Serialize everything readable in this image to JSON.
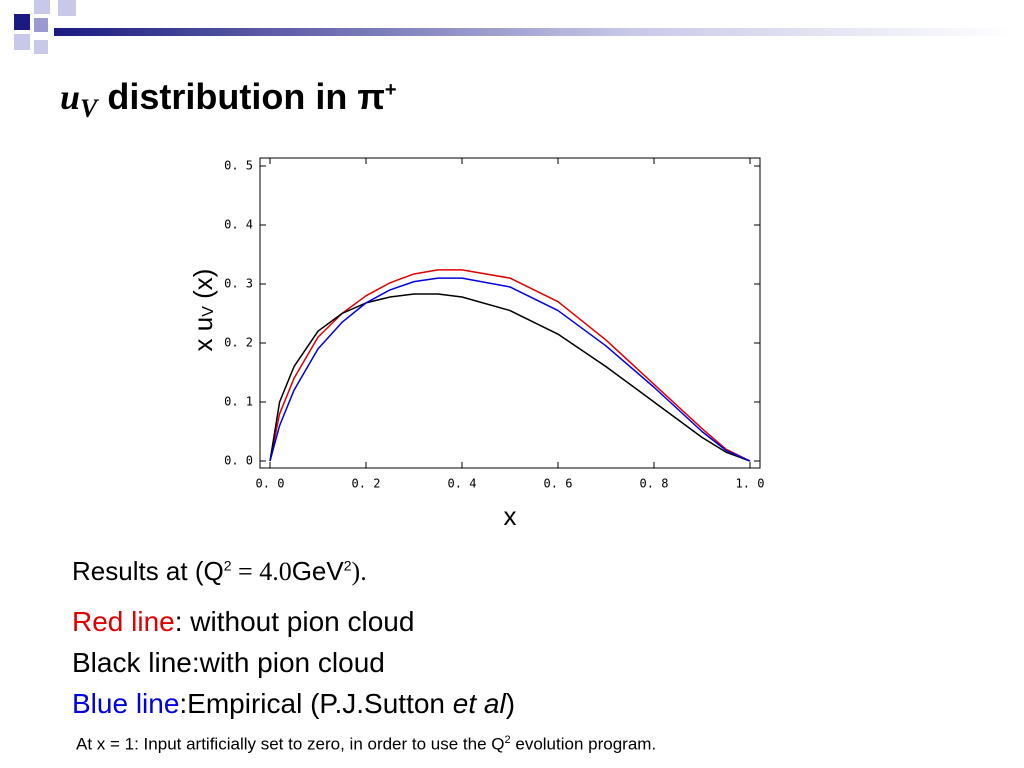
{
  "title": {
    "var": "u",
    "sub": "V",
    "text": "distribution in π",
    "sup": "+"
  },
  "chart_data": {
    "type": "line",
    "x": [
      0,
      0.02,
      0.05,
      0.1,
      0.15,
      0.2,
      0.25,
      0.3,
      0.35,
      0.4,
      0.5,
      0.6,
      0.7,
      0.8,
      0.9,
      0.95,
      1.0
    ],
    "series": [
      {
        "color": "#e00000",
        "values": [
          0,
          0.08,
          0.14,
          0.21,
          0.25,
          0.28,
          0.302,
          0.317,
          0.324,
          0.324,
          0.31,
          0.27,
          0.205,
          0.13,
          0.055,
          0.02,
          0
        ]
      },
      {
        "color": "#000000",
        "values": [
          0,
          0.1,
          0.16,
          0.22,
          0.25,
          0.268,
          0.278,
          0.283,
          0.283,
          0.278,
          0.255,
          0.215,
          0.16,
          0.1,
          0.04,
          0.015,
          0
        ]
      },
      {
        "color": "#0000e0",
        "values": [
          0,
          0.06,
          0.12,
          0.19,
          0.235,
          0.268,
          0.29,
          0.304,
          0.31,
          0.31,
          0.295,
          0.255,
          0.195,
          0.125,
          0.05,
          0.018,
          0
        ]
      }
    ],
    "xlim": [
      0,
      1
    ],
    "ylim": [
      0,
      0.5
    ],
    "xticks": [
      {
        "value": 0,
        "label": "0. 0"
      },
      {
        "value": 0.2,
        "label": "0. 2"
      },
      {
        "value": 0.4,
        "label": "0. 4"
      },
      {
        "value": 0.6,
        "label": "0. 6"
      },
      {
        "value": 0.8,
        "label": "0. 8"
      },
      {
        "value": 1,
        "label": "1. 0"
      }
    ],
    "yticks": [
      {
        "value": 0,
        "label": "0. 0"
      },
      {
        "value": 0.1,
        "label": "0. 1"
      },
      {
        "value": 0.2,
        "label": "0. 2"
      },
      {
        "value": 0.3,
        "label": "0. 3"
      },
      {
        "value": 0.4,
        "label": "0. 4"
      },
      {
        "value": 0.5,
        "label": "0. 5"
      }
    ],
    "xlabel": "x",
    "ylabel": {
      "pre": "x u",
      "sub": "V",
      "post": " (x)"
    }
  },
  "body": {
    "results": {
      "lead": "Results at",
      "open": "(Q",
      "sup1": "2",
      "mid": " = 4.0",
      "unit": "GeV",
      "sup2": "2",
      "end": ")."
    },
    "red": {
      "key": "Red line",
      "text": ": without pion cloud"
    },
    "black": {
      "text": "Black line:with pion cloud"
    },
    "blue": {
      "key": "Blue line",
      "text": ":Empirical (P.J.Sutton ",
      "ital": "et al",
      "end": ")"
    },
    "note": {
      "text": "At x = 1: Input artificially set to zero, in order to use the Q",
      "sup": "2",
      "end": " evolution program."
    }
  }
}
